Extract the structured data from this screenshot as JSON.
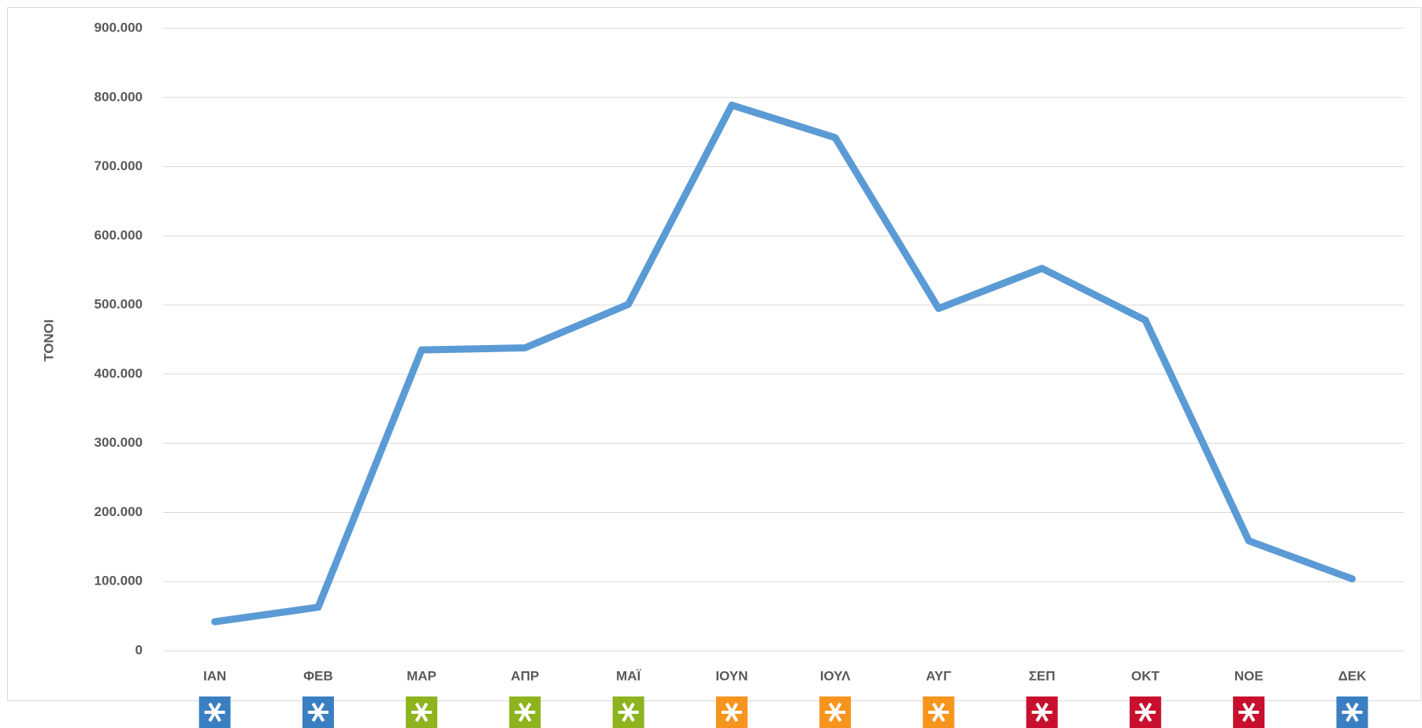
{
  "chart_data": {
    "type": "line",
    "y_label": "ΤΟΝΟΙ",
    "categories": [
      "ΙΑΝ",
      "ΦΕΒ",
      "ΜΑΡ",
      "ΑΠΡ",
      "ΜΑΪ",
      "ΙΟΥΝ",
      "ΙΟΥΛ",
      "ΑΥΓ",
      "ΣΕΠ",
      "ΟΚΤ",
      "ΝΟΕ",
      "ΔΕΚ"
    ],
    "series": [
      {
        "color": "#5b9bd5",
        "values": [
          42000,
          63000,
          435000,
          438000,
          501000,
          789000,
          742000,
          495000,
          553000,
          478000,
          159000,
          104000
        ]
      }
    ],
    "ylim": [
      0,
      900000
    ],
    "yticks": [
      0,
      {
        "value": 100000,
        "label": "100.000"
      },
      {
        "value": 200000,
        "label": "200.000"
      },
      {
        "value": 300000,
        "label": "300.000"
      },
      {
        "value": 400000,
        "label": "400.000"
      },
      {
        "value": 500000,
        "label": "500.000"
      },
      {
        "value": 600000,
        "label": "600.000"
      },
      {
        "value": 700000,
        "label": "700.000"
      },
      {
        "value": 800000,
        "label": "800.000"
      },
      {
        "value": 900000,
        "label": "900.000"
      }
    ],
    "grid": true
  }
}
